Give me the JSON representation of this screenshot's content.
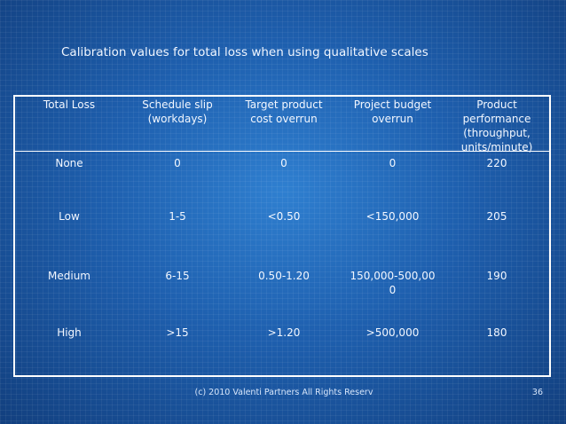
{
  "title": "Calibration values for total loss when using qualitative scales",
  "table": {
    "headers": [
      [
        "Total Loss"
      ],
      [
        "Schedule slip",
        "(workdays)"
      ],
      [
        "Target product",
        "cost overrun"
      ],
      [
        "Project budget",
        "overrun"
      ],
      [
        "Product",
        "performance",
        "(throughput,",
        "units/minute)"
      ]
    ],
    "rows": [
      [
        [
          "None"
        ],
        [
          "0"
        ],
        [
          "0"
        ],
        [
          "0"
        ],
        [
          "220"
        ]
      ],
      [
        [
          "Low"
        ],
        [
          "1-5"
        ],
        [
          "<0.50"
        ],
        [
          "<150,000"
        ],
        [
          "205"
        ]
      ],
      [
        [
          "Medium"
        ],
        [
          "6-15"
        ],
        [
          "0.50-1.20"
        ],
        [
          "150,000-500,00",
          "0"
        ],
        [
          "190"
        ]
      ],
      [
        [
          "High"
        ],
        [
          ">15"
        ],
        [
          ">1.20"
        ],
        [
          ">500,000"
        ],
        [
          "180"
        ]
      ]
    ]
  },
  "footer": {
    "copyright": "(c) 2010 Valenti Partners All Rights Reserv",
    "page_number": "36"
  }
}
